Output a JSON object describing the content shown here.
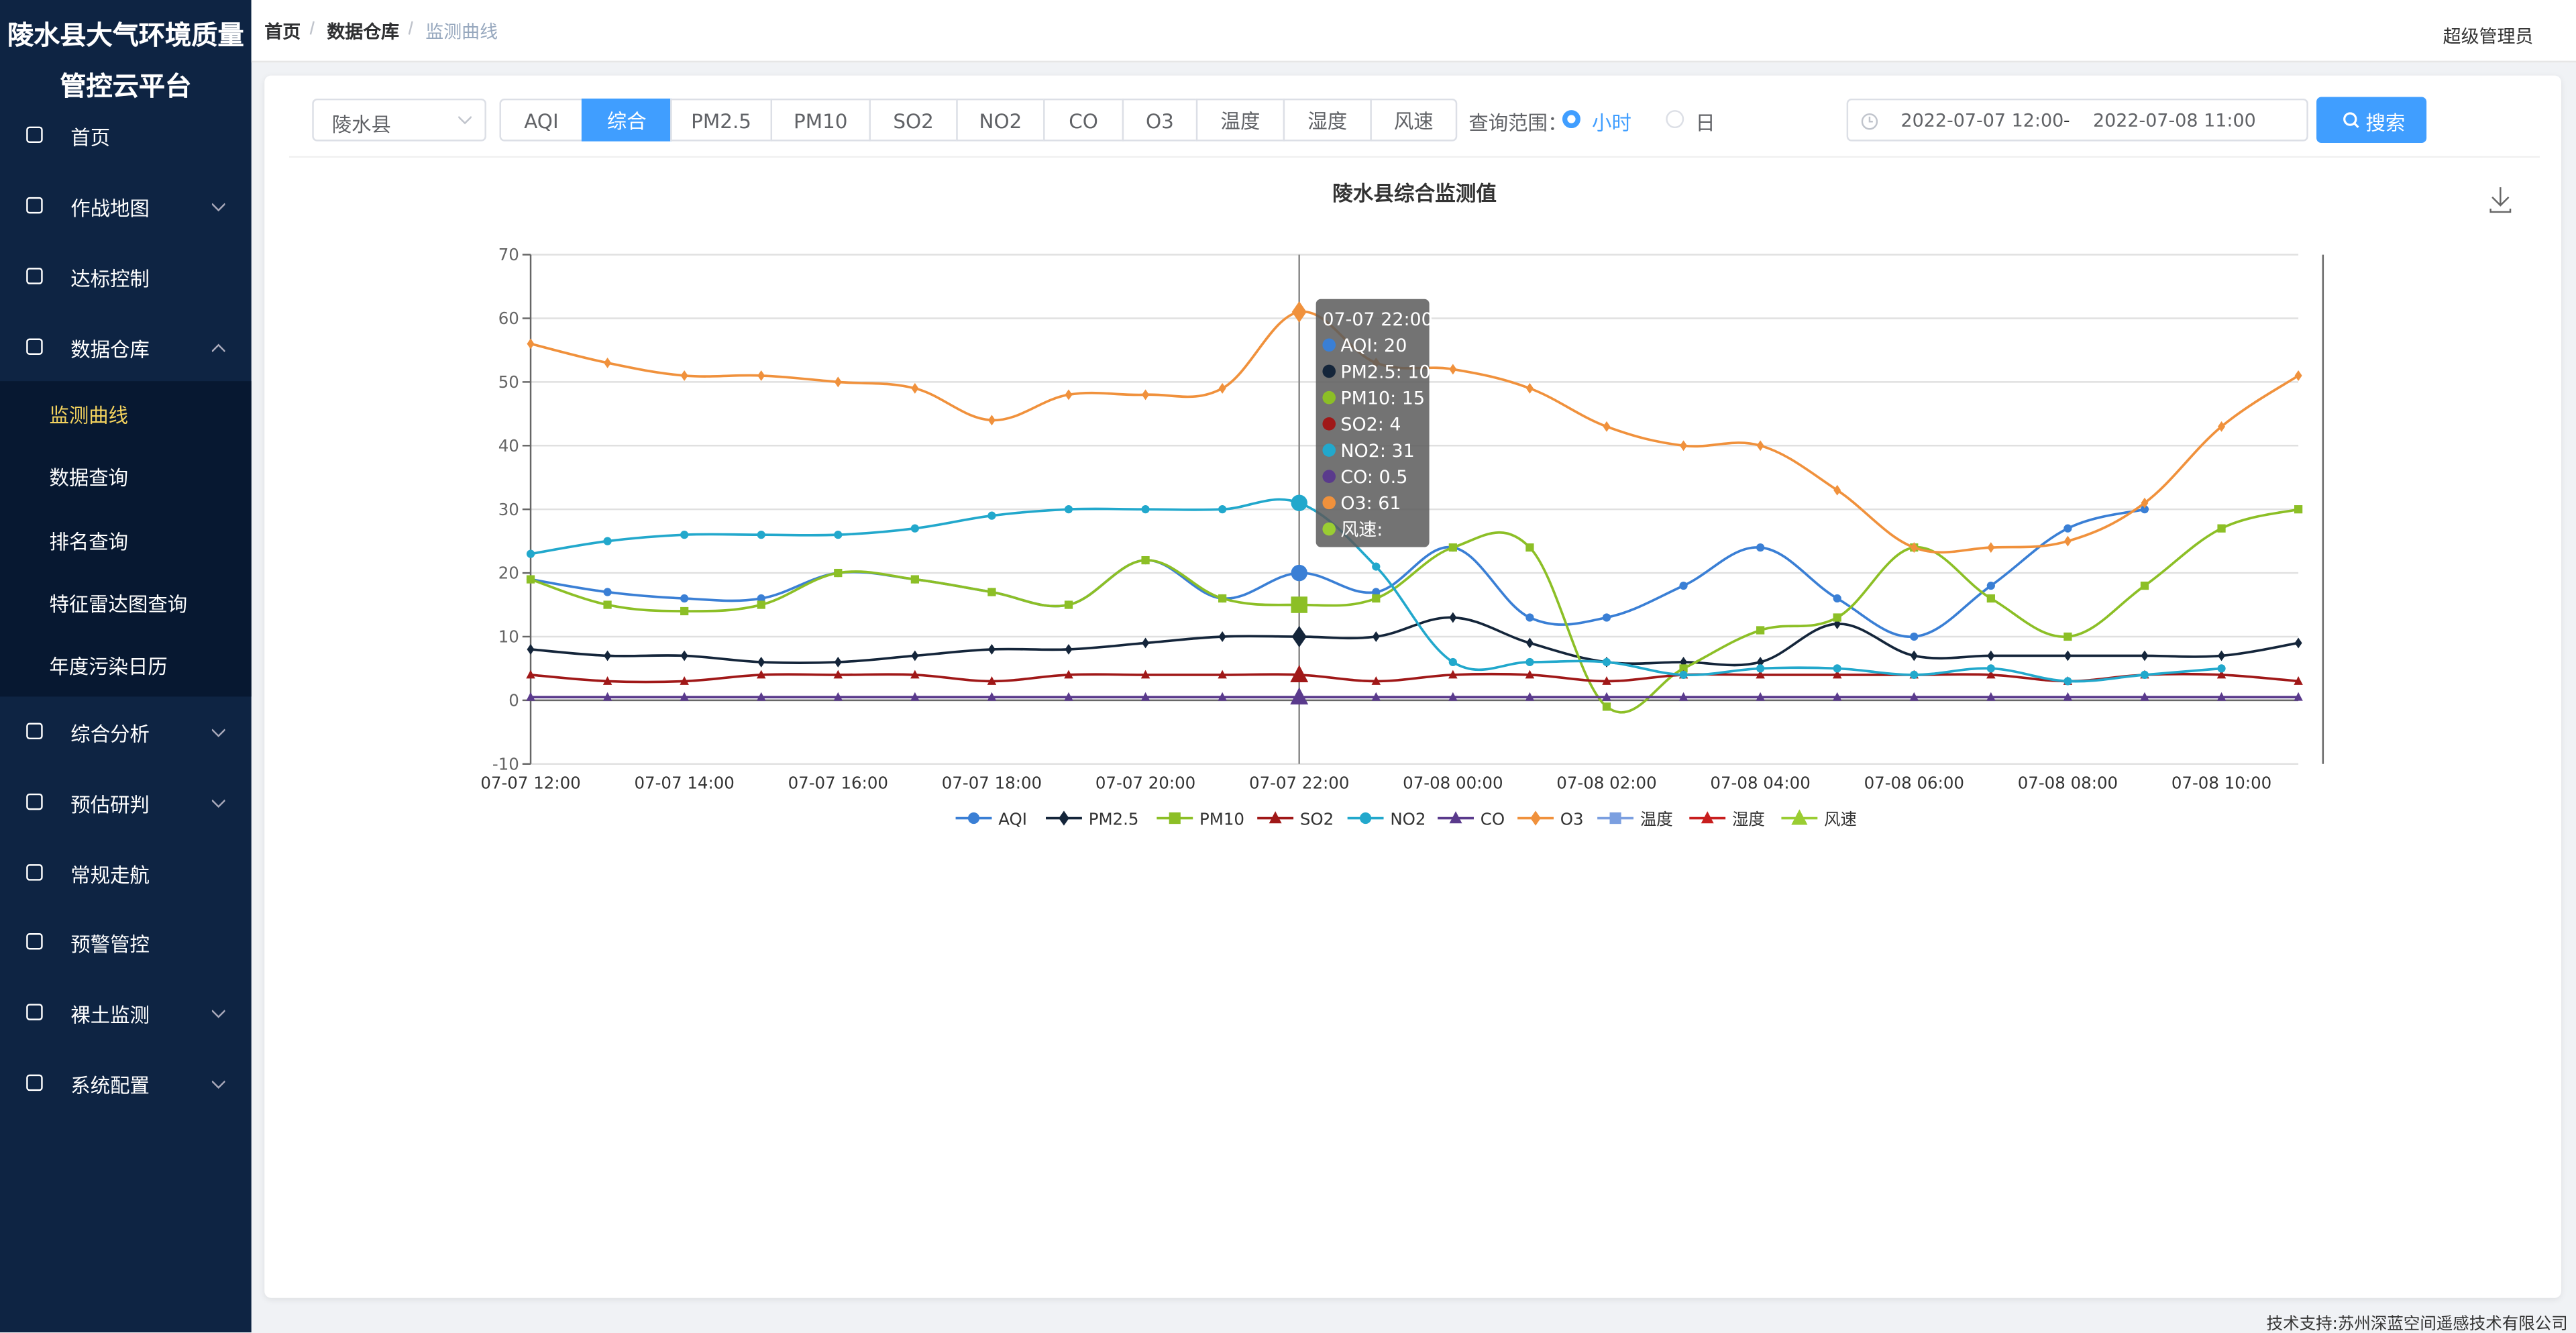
{
  "sidebar": {
    "title_lines": [
      "陵水县大气环境质量",
      "管控云平台"
    ],
    "menu_top": [
      "首页",
      "作战地图",
      "达标控制",
      "数据仓库"
    ],
    "submenu": [
      "监测曲线",
      "数据查询",
      "排名查询",
      "特征雷达图查询",
      "年度污染日历"
    ],
    "menu_bottom": [
      "综合分析",
      "预估研判",
      "常规走航",
      "预警管控",
      "裸土监测",
      "系统配置"
    ]
  },
  "breadcrumb": [
    "首页",
    "数据仓库",
    "监测曲线"
  ],
  "user": "超级管理员",
  "toolbar": {
    "region": "陵水县",
    "tabs": [
      "AQI",
      "综合",
      "PM2.5",
      "PM10",
      "SO2",
      "NO2",
      "CO",
      "O3",
      "温度",
      "湿度",
      "风速"
    ],
    "active_tab": "综合",
    "range_label": "查询范围：",
    "range_options": [
      "小时",
      "日"
    ],
    "range_selected": "小时",
    "start": "2022-07-07 12:00",
    "separator": "-",
    "end": "2022-07-08 11:00",
    "search": "搜索"
  },
  "chart_data": {
    "type": "line",
    "title": "陵水县综合监测值",
    "categories": [
      "07-07 12:00",
      null,
      "07-07 14:00",
      null,
      "07-07 16:00",
      null,
      "07-07 18:00",
      null,
      "07-07 20:00",
      null,
      "07-07 22:00",
      null,
      "07-08 00:00",
      null,
      "07-08 02:00",
      null,
      "07-08 04:00",
      null,
      "07-08 06:00",
      null,
      "07-08 08:00",
      null,
      "07-08 10:00",
      null
    ],
    "ylim": [
      -10,
      70
    ],
    "yticks": [
      -10,
      0,
      10,
      20,
      30,
      40,
      50,
      60,
      70
    ],
    "grid": true,
    "legend": "bottom",
    "series": [
      {
        "name": "AQI",
        "color": "#3a7fd5",
        "symbol": "circle",
        "values": [
          19,
          17,
          16,
          16,
          20,
          19,
          17,
          15,
          22,
          16,
          20,
          17,
          24,
          13,
          13,
          18,
          24,
          16,
          10,
          18,
          27,
          30,
          null,
          null
        ]
      },
      {
        "name": "PM2.5",
        "color": "#14253a",
        "symbol": "diamond",
        "values": [
          8,
          7,
          7,
          6,
          6,
          7,
          8,
          8,
          9,
          10,
          10,
          10,
          13,
          9,
          6,
          6,
          6,
          12,
          7,
          7,
          7,
          7,
          7,
          9
        ]
      },
      {
        "name": "PM10",
        "color": "#8cbf26",
        "symbol": "rect",
        "values": [
          19,
          15,
          14,
          15,
          20,
          19,
          17,
          15,
          22,
          16,
          15,
          16,
          24,
          24,
          -1,
          5,
          11,
          13,
          24,
          16,
          10,
          18,
          27,
          30
        ]
      },
      {
        "name": "SO2",
        "color": "#a01818",
        "symbol": "triangle",
        "values": [
          4,
          3,
          3,
          4,
          4,
          4,
          3,
          4,
          4,
          4,
          4,
          3,
          4,
          4,
          3,
          4,
          4,
          4,
          4,
          4,
          3,
          4,
          4,
          3
        ]
      },
      {
        "name": "NO2",
        "color": "#22a8cc",
        "symbol": "circle",
        "values": [
          23,
          25,
          26,
          26,
          26,
          27,
          29,
          30,
          30,
          30,
          31,
          21,
          6,
          6,
          6,
          4,
          5,
          5,
          4,
          5,
          3,
          4,
          5,
          null
        ]
      },
      {
        "name": "CO",
        "color": "#5a3a8c",
        "symbol": "triangle",
        "values": [
          0.5,
          0.5,
          0.5,
          0.5,
          0.5,
          0.5,
          0.5,
          0.5,
          0.5,
          0.5,
          0.5,
          0.5,
          0.5,
          0.5,
          0.5,
          0.5,
          0.5,
          0.5,
          0.5,
          0.5,
          0.5,
          0.5,
          0.5,
          0.5
        ]
      },
      {
        "name": "O3",
        "color": "#f0913c",
        "symbol": "diamond",
        "values": [
          56,
          53,
          51,
          51,
          50,
          49,
          44,
          48,
          48,
          49,
          61,
          53,
          52,
          49,
          43,
          40,
          40,
          33,
          24,
          24,
          25,
          31,
          43,
          51
        ]
      },
      {
        "name": "温度",
        "color": "#7b9fe0",
        "symbol": "rect",
        "values": [
          null,
          null,
          null,
          null,
          null,
          null,
          null,
          null,
          null,
          null,
          null,
          null,
          null,
          null,
          null,
          null,
          null,
          null,
          null,
          null,
          null,
          null,
          null,
          null
        ]
      },
      {
        "name": "湿度",
        "color": "#c81e1e",
        "symbol": "triangle",
        "values": [
          null,
          null,
          null,
          null,
          null,
          null,
          null,
          null,
          null,
          null,
          null,
          null,
          null,
          null,
          null,
          null,
          null,
          null,
          null,
          null,
          null,
          null,
          null,
          null
        ]
      },
      {
        "name": "风速",
        "color": "#9acd32",
        "symbol": "triangle",
        "values": [
          null,
          null,
          null,
          null,
          null,
          null,
          null,
          null,
          null,
          null,
          null,
          null,
          null,
          null,
          null,
          null,
          null,
          null,
          null,
          null,
          null,
          null,
          null,
          null
        ]
      }
    ]
  },
  "tooltip": {
    "title": "07-07 22:00",
    "items": [
      "AQI: 20",
      "PM2.5: 10",
      "PM10: 15",
      "SO2: 4",
      "NO2: 31",
      "CO: 0.5",
      "O3: 61",
      "风速:"
    ]
  },
  "footer": "技术支持:苏州深蓝空间遥感技术有限公司"
}
